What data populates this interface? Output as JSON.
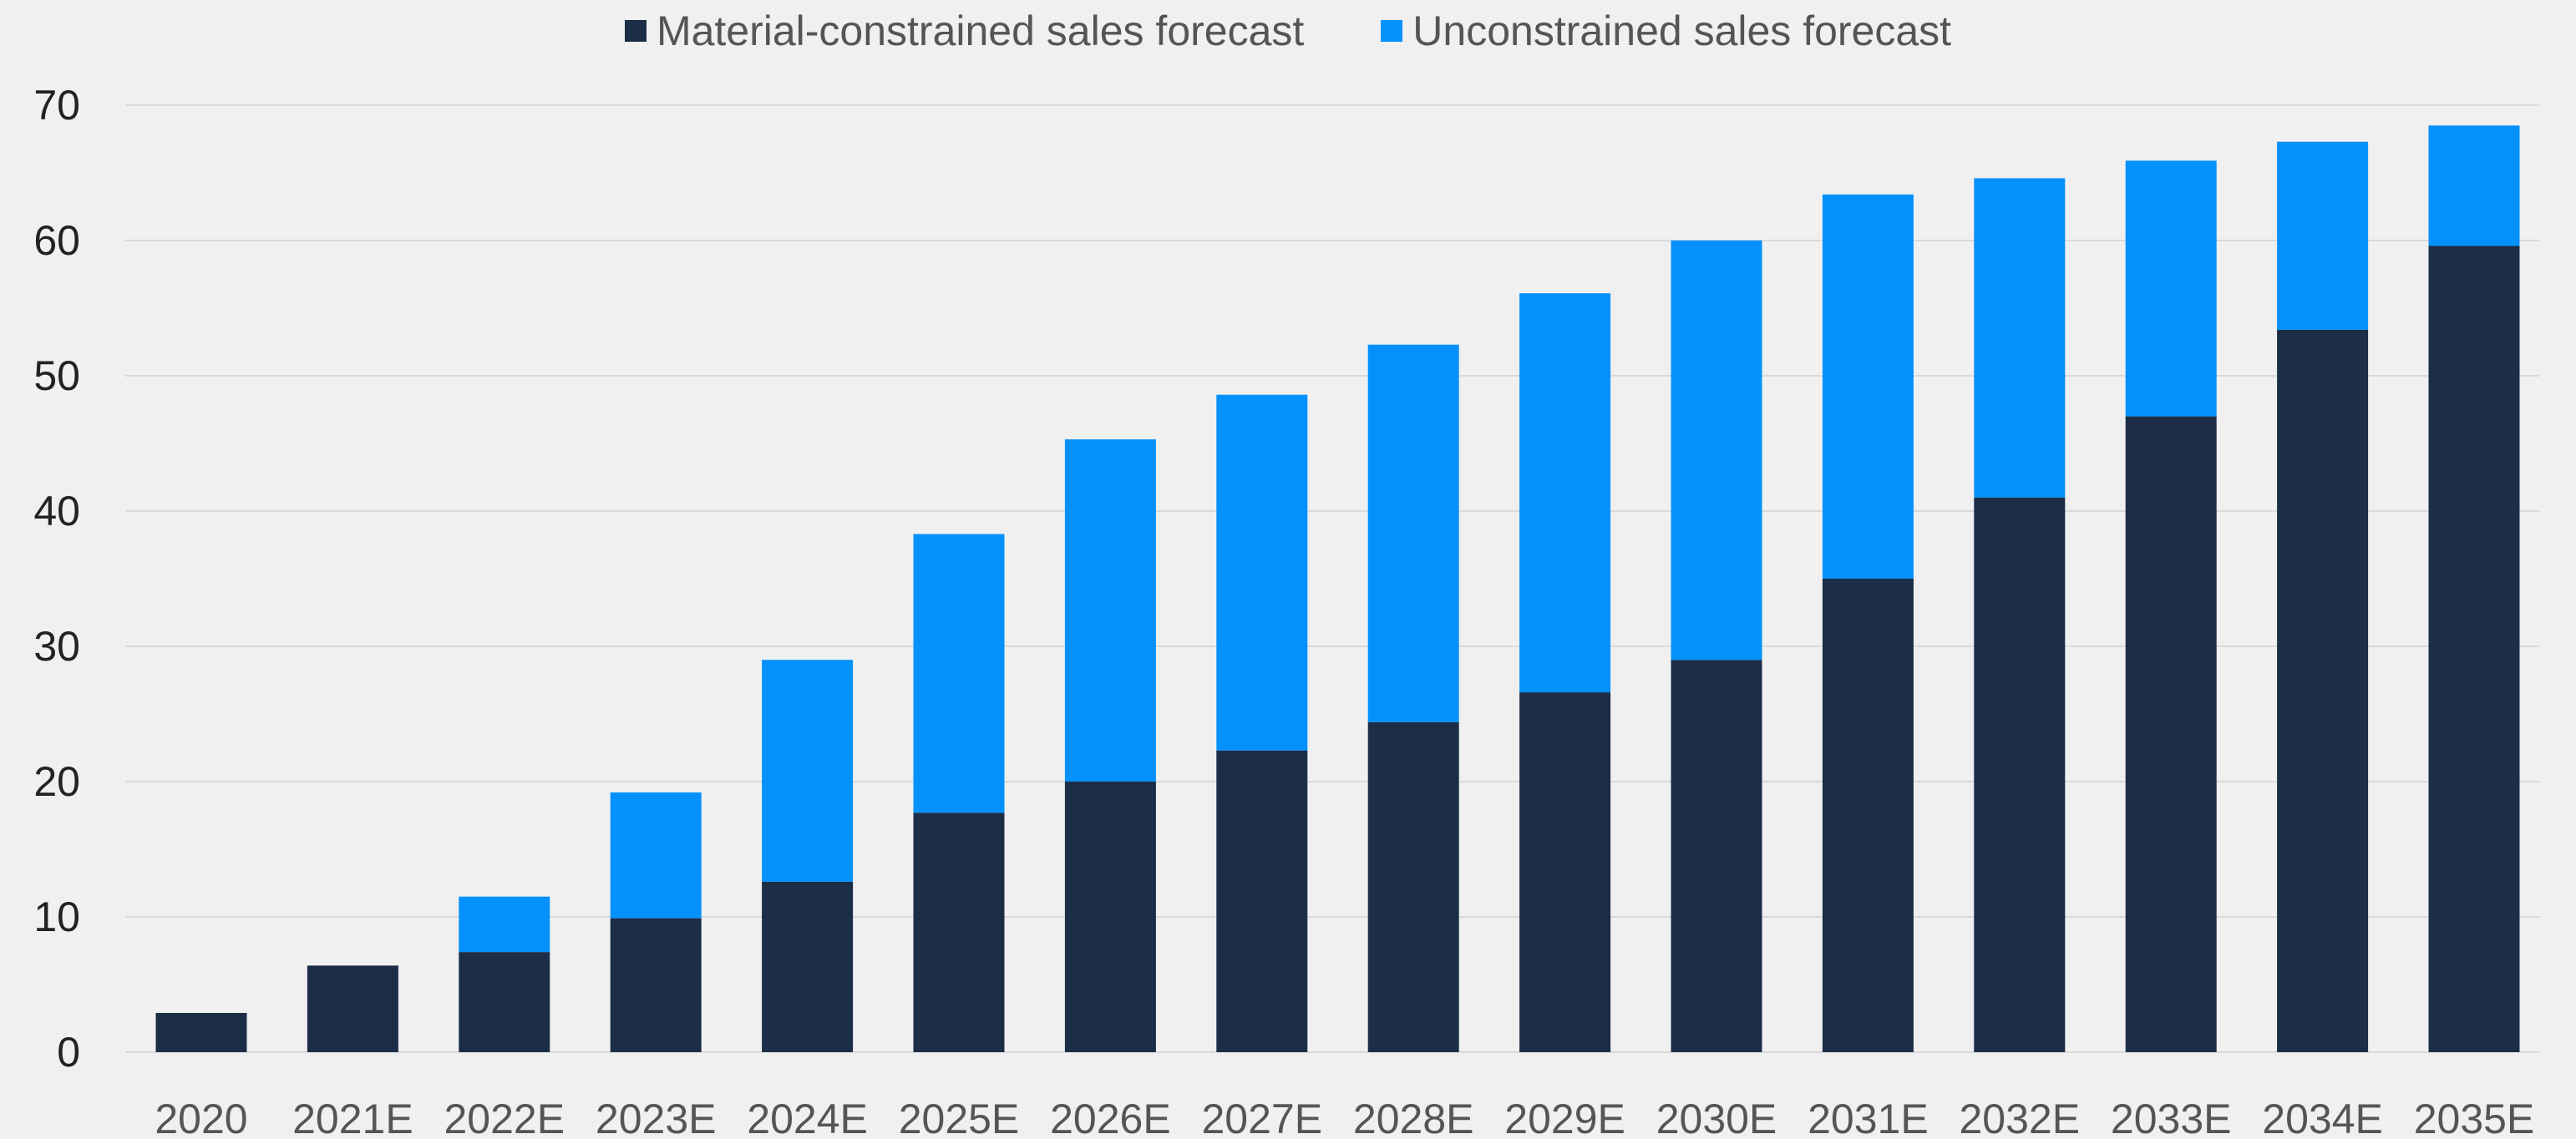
{
  "chart_data": {
    "type": "bar",
    "stacked": true,
    "categories": [
      "2020",
      "2021E",
      "2022E",
      "2023E",
      "2024E",
      "2025E",
      "2026E",
      "2027E",
      "2028E",
      "2029E",
      "2030E",
      "2031E",
      "2032E",
      "2033E",
      "2034E",
      "2035E"
    ],
    "series": [
      {
        "name": "Material-constrained sales forecast",
        "color": "#1b2d47",
        "values": [
          2.9,
          6.4,
          7.4,
          9.9,
          12.6,
          17.7,
          20.0,
          22.3,
          24.4,
          26.6,
          29.0,
          35.0,
          41.0,
          47.0,
          53.4,
          59.6
        ]
      },
      {
        "name": "Unconstrained sales forecast",
        "color": "#0591fb",
        "values": [
          0,
          0,
          4.1,
          9.3,
          16.4,
          20.6,
          25.3,
          26.3,
          27.9,
          29.5,
          31.0,
          28.4,
          23.6,
          18.9,
          13.9,
          8.9
        ]
      }
    ],
    "yticks": [
      0,
      10,
      20,
      30,
      40,
      50,
      60,
      70
    ],
    "ylim": [
      0,
      70
    ],
    "grid": true,
    "legend_position": "top-center",
    "title": "",
    "xlabel": "",
    "ylabel": ""
  }
}
